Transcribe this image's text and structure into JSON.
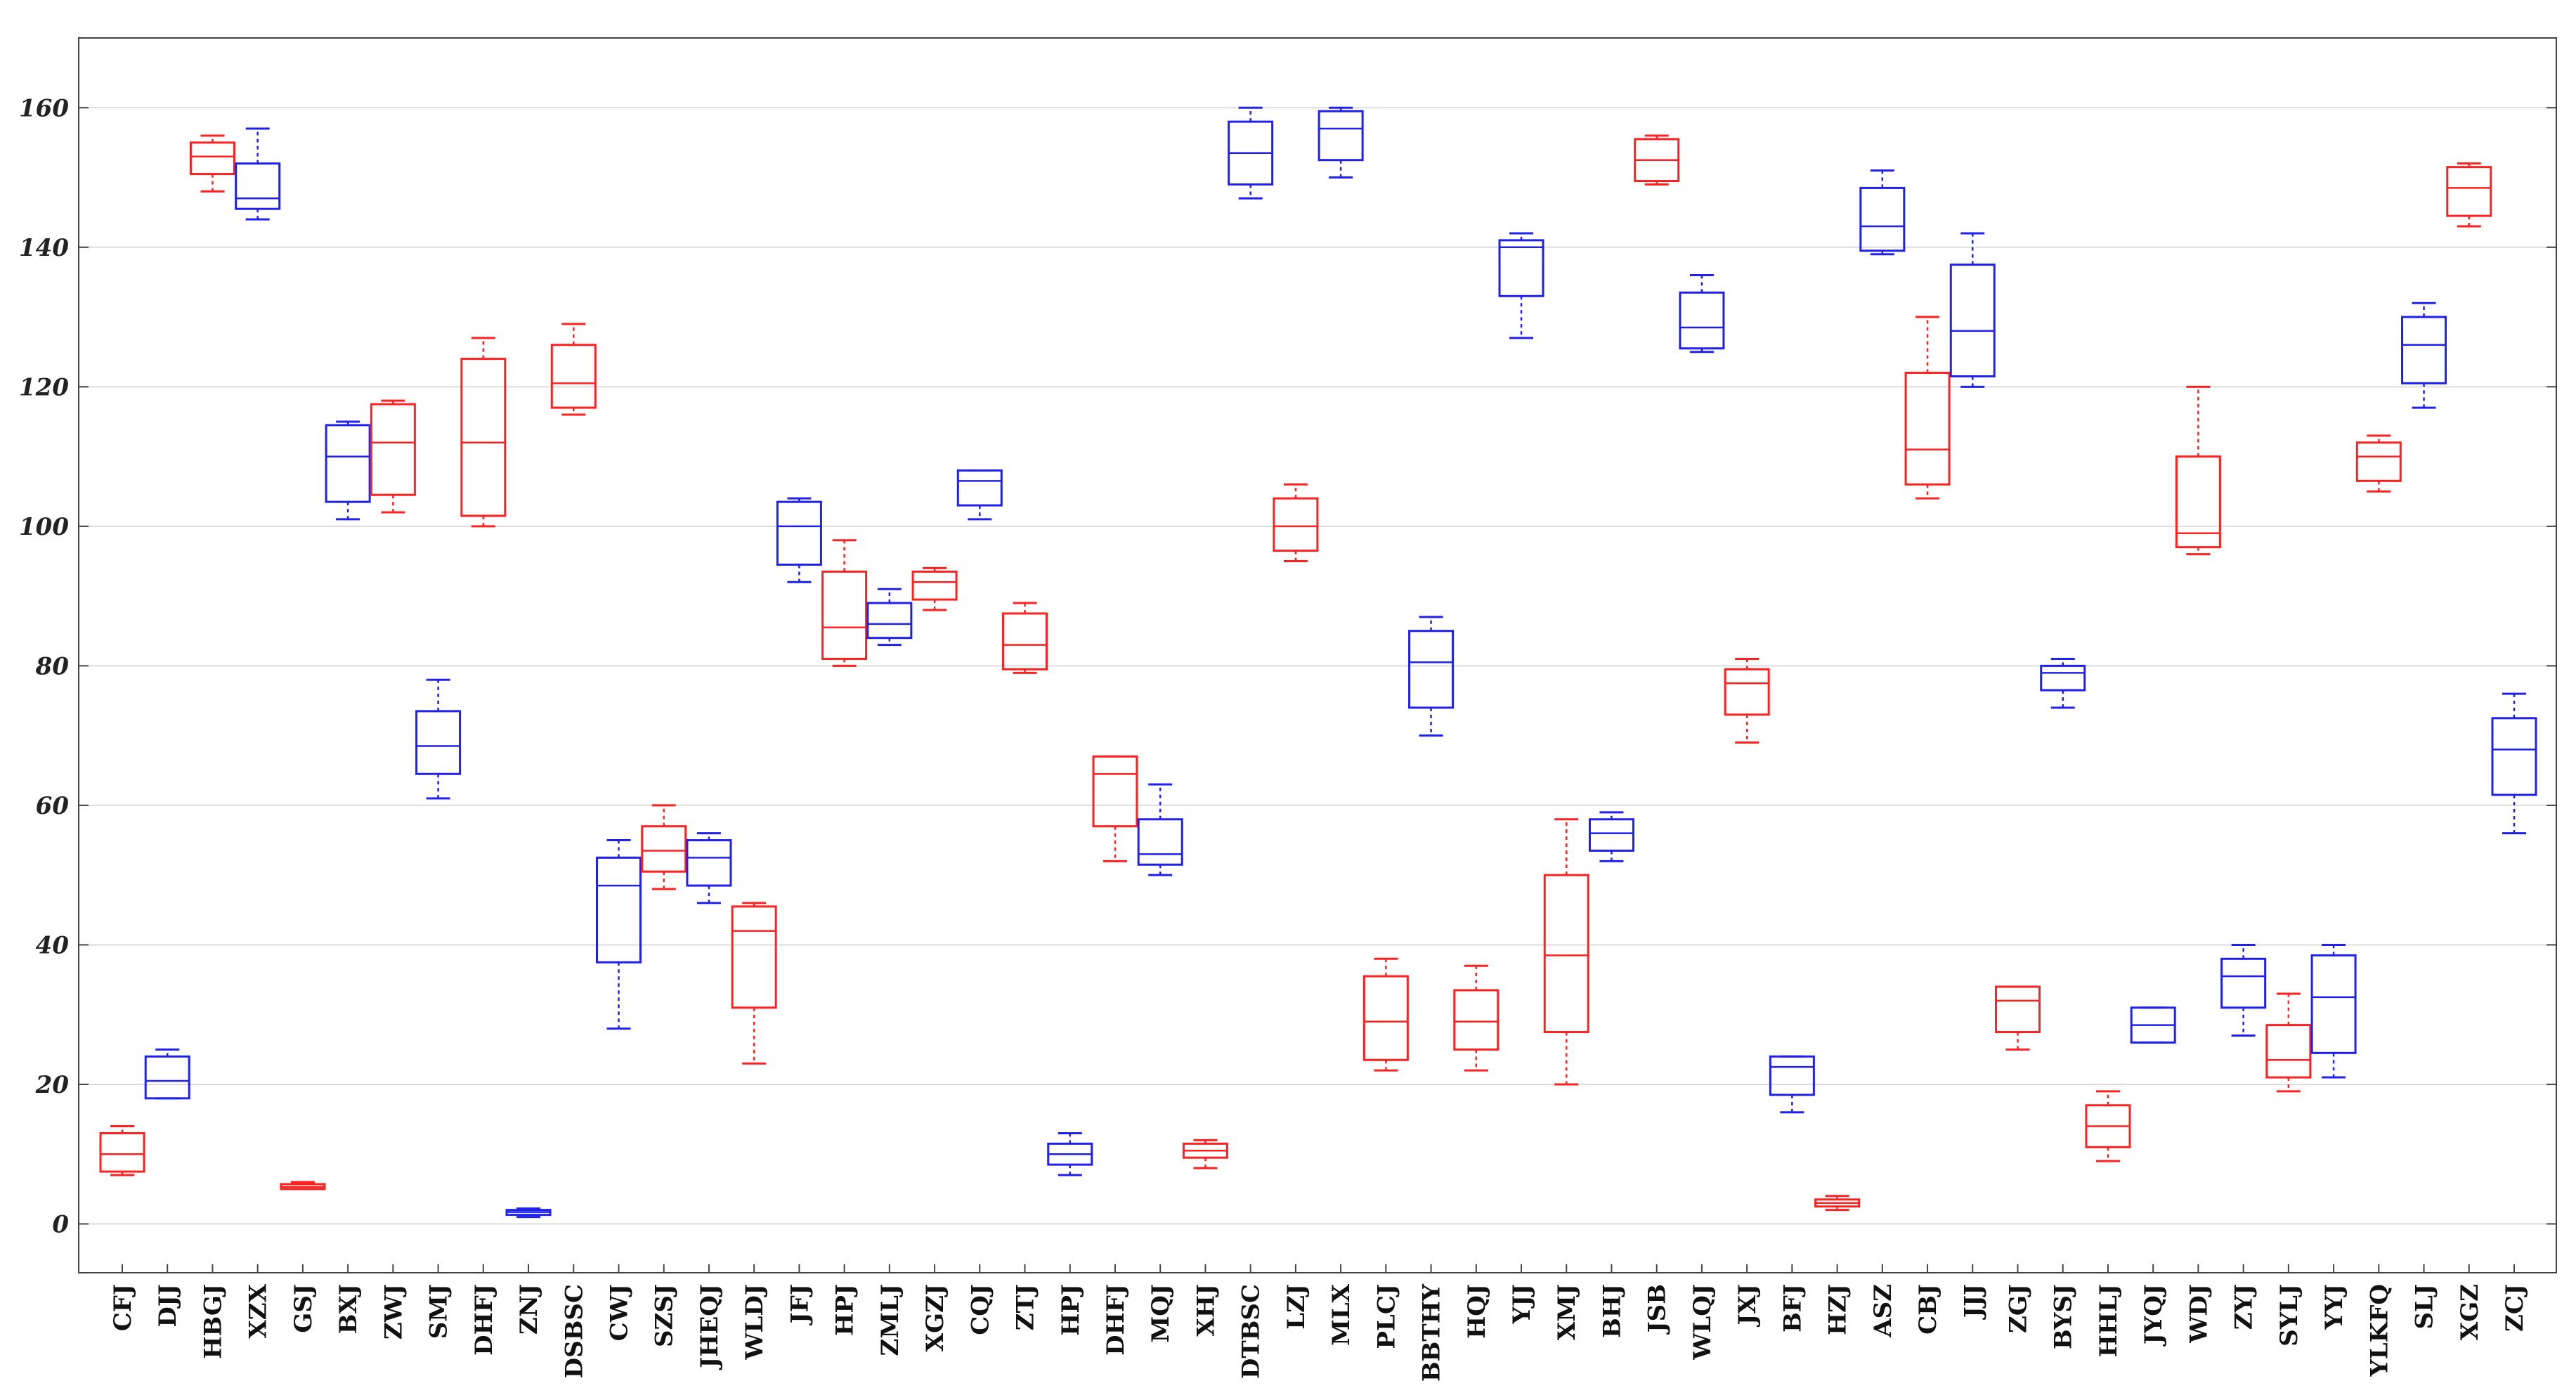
{
  "colors": {
    "red": "#ff2020",
    "blue": "#2020ee",
    "grid": "#dddddd",
    "axis": "#444444"
  },
  "chart_data": {
    "type": "boxplot",
    "title": "",
    "xlabel": "",
    "ylabel": "",
    "ylim": [
      -7,
      170
    ],
    "yticks": [
      0,
      20,
      40,
      60,
      80,
      100,
      120,
      140,
      160
    ],
    "ytick_labels": [
      "0",
      "20",
      "40",
      "60",
      "80",
      "100",
      "120",
      "140",
      "160"
    ],
    "grid": true,
    "boxes": [
      {
        "label": "CFJ",
        "color": "red",
        "min": 7,
        "q1": 7.5,
        "median": 10,
        "q3": 13,
        "max": 14
      },
      {
        "label": "DJJ",
        "color": "blue",
        "min": 18,
        "q1": 18,
        "median": 20.5,
        "q3": 24,
        "max": 25
      },
      {
        "label": "HBGJ",
        "color": "red",
        "min": 148,
        "q1": 150.5,
        "median": 153,
        "q3": 155,
        "max": 156
      },
      {
        "label": "XZX",
        "color": "blue",
        "min": 144,
        "q1": 145.5,
        "median": 147,
        "q3": 152,
        "max": 157
      },
      {
        "label": "GSJ",
        "color": "red",
        "min": 5,
        "q1": 5,
        "median": 5.3,
        "q3": 5.7,
        "max": 6
      },
      {
        "label": "BXJ",
        "color": "blue",
        "min": 101,
        "q1": 103.5,
        "median": 110,
        "q3": 114.5,
        "max": 115
      },
      {
        "label": "ZWJ",
        "color": "red",
        "min": 102,
        "q1": 104.5,
        "median": 112,
        "q3": 117.5,
        "max": 118
      },
      {
        "label": "SMJ",
        "color": "blue",
        "min": 61,
        "q1": 64.5,
        "median": 68.5,
        "q3": 73.5,
        "max": 78
      },
      {
        "label": "DHFJ",
        "color": "red",
        "min": 100,
        "q1": 101.5,
        "median": 112,
        "q3": 124,
        "max": 127
      },
      {
        "label": "ZNJ",
        "color": "blue",
        "min": 1,
        "q1": 1.3,
        "median": 1.7,
        "q3": 2,
        "max": 2.2
      },
      {
        "label": "DSBSC",
        "color": "red",
        "min": 116,
        "q1": 117,
        "median": 120.5,
        "q3": 126,
        "max": 129
      },
      {
        "label": "CWJ",
        "color": "blue",
        "min": 28,
        "q1": 37.5,
        "median": 48.5,
        "q3": 52.5,
        "max": 55
      },
      {
        "label": "SZSJ",
        "color": "red",
        "min": 48,
        "q1": 50.5,
        "median": 53.5,
        "q3": 57,
        "max": 60
      },
      {
        "label": "JHEQJ",
        "color": "blue",
        "min": 46,
        "q1": 48.5,
        "median": 52.5,
        "q3": 55,
        "max": 56
      },
      {
        "label": "WLDJ",
        "color": "red",
        "min": 23,
        "q1": 31,
        "median": 42,
        "q3": 45.5,
        "max": 46
      },
      {
        "label": "JFJ",
        "color": "blue",
        "min": 92,
        "q1": 94.5,
        "median": 100,
        "q3": 103.5,
        "max": 104
      },
      {
        "label": "HPJ",
        "color": "red",
        "min": 80,
        "q1": 81,
        "median": 85.5,
        "q3": 93.5,
        "max": 98
      },
      {
        "label": "ZMLJ",
        "color": "blue",
        "min": 83,
        "q1": 84,
        "median": 86,
        "q3": 89,
        "max": 91
      },
      {
        "label": "XGZJ",
        "color": "red",
        "min": 88,
        "q1": 89.5,
        "median": 92,
        "q3": 93.5,
        "max": 94
      },
      {
        "label": "CQJ",
        "color": "blue",
        "min": 101,
        "q1": 103,
        "median": 106.5,
        "q3": 108,
        "max": 108
      },
      {
        "label": "ZTJ",
        "color": "red",
        "min": 79,
        "q1": 79.5,
        "median": 83,
        "q3": 87.5,
        "max": 89
      },
      {
        "label": "HPJ",
        "color": "blue",
        "min": 7,
        "q1": 8.5,
        "median": 10,
        "q3": 11.5,
        "max": 13
      },
      {
        "label": "DHFJ",
        "color": "red",
        "min": 52,
        "q1": 57,
        "median": 64.5,
        "q3": 67,
        "max": 67
      },
      {
        "label": "MQJ",
        "color": "blue",
        "min": 50,
        "q1": 51.5,
        "median": 53,
        "q3": 58,
        "max": 63
      },
      {
        "label": "XHJ",
        "color": "red",
        "min": 8,
        "q1": 9.5,
        "median": 10.5,
        "q3": 11.5,
        "max": 12
      },
      {
        "label": "DTBSC",
        "color": "blue",
        "min": 147,
        "q1": 149,
        "median": 153.5,
        "q3": 158,
        "max": 160
      },
      {
        "label": "LZJ",
        "color": "red",
        "min": 95,
        "q1": 96.5,
        "median": 100,
        "q3": 104,
        "max": 106
      },
      {
        "label": "MLX",
        "color": "blue",
        "min": 150,
        "q1": 152.5,
        "median": 157,
        "q3": 159.5,
        "max": 160
      },
      {
        "label": "PLCJ",
        "color": "red",
        "min": 22,
        "q1": 23.5,
        "median": 29,
        "q3": 35.5,
        "max": 38
      },
      {
        "label": "BBTHY",
        "color": "blue",
        "min": 70,
        "q1": 74,
        "median": 80.5,
        "q3": 85,
        "max": 87
      },
      {
        "label": "HQJ",
        "color": "red",
        "min": 22,
        "q1": 25,
        "median": 29,
        "q3": 33.5,
        "max": 37
      },
      {
        "label": "YJJ",
        "color": "blue",
        "min": 127,
        "q1": 133,
        "median": 140,
        "q3": 141,
        "max": 142
      },
      {
        "label": "XMJ",
        "color": "red",
        "min": 20,
        "q1": 27.5,
        "median": 38.5,
        "q3": 50,
        "max": 58
      },
      {
        "label": "BHJ",
        "color": "blue",
        "min": 52,
        "q1": 53.5,
        "median": 56,
        "q3": 58,
        "max": 59
      },
      {
        "label": "JSB",
        "color": "red",
        "min": 149,
        "q1": 149.5,
        "median": 152.5,
        "q3": 155.5,
        "max": 156
      },
      {
        "label": "WLQJ",
        "color": "blue",
        "min": 125,
        "q1": 125.5,
        "median": 128.5,
        "q3": 133.5,
        "max": 136
      },
      {
        "label": "JXJ",
        "color": "red",
        "min": 69,
        "q1": 73,
        "median": 77.5,
        "q3": 79.5,
        "max": 81
      },
      {
        "label": "BFJ",
        "color": "blue",
        "min": 16,
        "q1": 18.5,
        "median": 22.5,
        "q3": 24,
        "max": 24
      },
      {
        "label": "HZJ",
        "color": "red",
        "min": 2,
        "q1": 2.5,
        "median": 3,
        "q3": 3.5,
        "max": 4
      },
      {
        "label": "ASZ",
        "color": "blue",
        "min": 139,
        "q1": 139.5,
        "median": 143,
        "q3": 148.5,
        "max": 151
      },
      {
        "label": "CBJ",
        "color": "red",
        "min": 104,
        "q1": 106,
        "median": 111,
        "q3": 122,
        "max": 130
      },
      {
        "label": "JJJ",
        "color": "blue",
        "min": 120,
        "q1": 121.5,
        "median": 128,
        "q3": 137.5,
        "max": 142
      },
      {
        "label": "ZGJ",
        "color": "red",
        "min": 25,
        "q1": 27.5,
        "median": 32,
        "q3": 34,
        "max": 34
      },
      {
        "label": "BYSJ",
        "color": "blue",
        "min": 74,
        "q1": 76.5,
        "median": 79,
        "q3": 80,
        "max": 81
      },
      {
        "label": "HHLJ",
        "color": "red",
        "min": 9,
        "q1": 11,
        "median": 14,
        "q3": 17,
        "max": 19
      },
      {
        "label": "JYQJ",
        "color": "blue",
        "min": 26,
        "q1": 26,
        "median": 28.5,
        "q3": 31,
        "max": 31
      },
      {
        "label": "WDJ",
        "color": "red",
        "min": 96,
        "q1": 97,
        "median": 99,
        "q3": 110,
        "max": 120
      },
      {
        "label": "ZYJ",
        "color": "blue",
        "min": 27,
        "q1": 31,
        "median": 35.5,
        "q3": 38,
        "max": 40
      },
      {
        "label": "SYLJ",
        "color": "red",
        "min": 19,
        "q1": 21,
        "median": 23.5,
        "q3": 28.5,
        "max": 33
      },
      {
        "label": "YYJ",
        "color": "blue",
        "min": 21,
        "q1": 24.5,
        "median": 32.5,
        "q3": 38.5,
        "max": 40
      },
      {
        "label": "YLKFQ",
        "color": "red",
        "min": 105,
        "q1": 106.5,
        "median": 110,
        "q3": 112,
        "max": 113
      },
      {
        "label": "SLJ",
        "color": "blue",
        "min": 117,
        "q1": 120.5,
        "median": 126,
        "q3": 130,
        "max": 132
      },
      {
        "label": "XGZ",
        "color": "red",
        "min": 143,
        "q1": 144.5,
        "median": 148.5,
        "q3": 151.5,
        "max": 152
      },
      {
        "label": "ZCJ",
        "color": "blue",
        "min": 56,
        "q1": 61.5,
        "median": 68,
        "q3": 72.5,
        "max": 76
      }
    ]
  }
}
